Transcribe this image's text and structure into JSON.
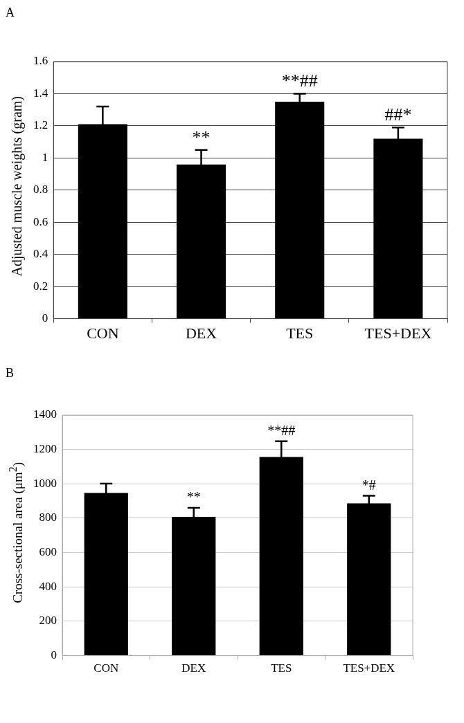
{
  "chart_data": [
    {
      "type": "bar",
      "title": "A",
      "ylabel": "Adjusted muscle weights (gram)",
      "categories": [
        "CON",
        "DEX",
        "TES",
        "TES+DEX"
      ],
      "values": [
        1.21,
        0.96,
        1.35,
        1.12
      ],
      "errors": [
        0.11,
        0.09,
        0.05,
        0.07
      ],
      "color": "#000000",
      "ylim": [
        0,
        1.6
      ],
      "yticks": [
        0,
        0.2,
        0.4,
        0.6,
        0.8,
        1,
        1.2,
        1.4,
        1.6
      ],
      "grid": "y",
      "legend": false,
      "annotations": [
        {
          "text": "**",
          "x": "DEX",
          "y": 1.05
        },
        {
          "text": "**##",
          "x": "TES",
          "y": 1.4
        },
        {
          "text": "##*",
          "x": "TES+DEX",
          "y": 1.19
        }
      ]
    },
    {
      "type": "bar",
      "title": "B",
      "ylabel": "Cross-sectional area (μm$^{2}$)",
      "categories": [
        "CON",
        "DEX",
        "TES",
        "TES+DEX"
      ],
      "values": [
        947,
        808,
        1156,
        886
      ],
      "errors": [
        54,
        52,
        92,
        45
      ],
      "color": "#000000",
      "ylim": [
        0,
        1400
      ],
      "yticks": [
        0,
        200,
        400,
        600,
        800,
        1000,
        1200,
        1400
      ],
      "grid": "y",
      "legend": false,
      "annotations": [
        {
          "text": "**",
          "x": "DEX",
          "y": 860
        },
        {
          "text": "**##",
          "x": "TES",
          "y": 1248
        },
        {
          "text": "*#",
          "x": "TES+DEX",
          "y": 931
        }
      ]
    }
  ]
}
